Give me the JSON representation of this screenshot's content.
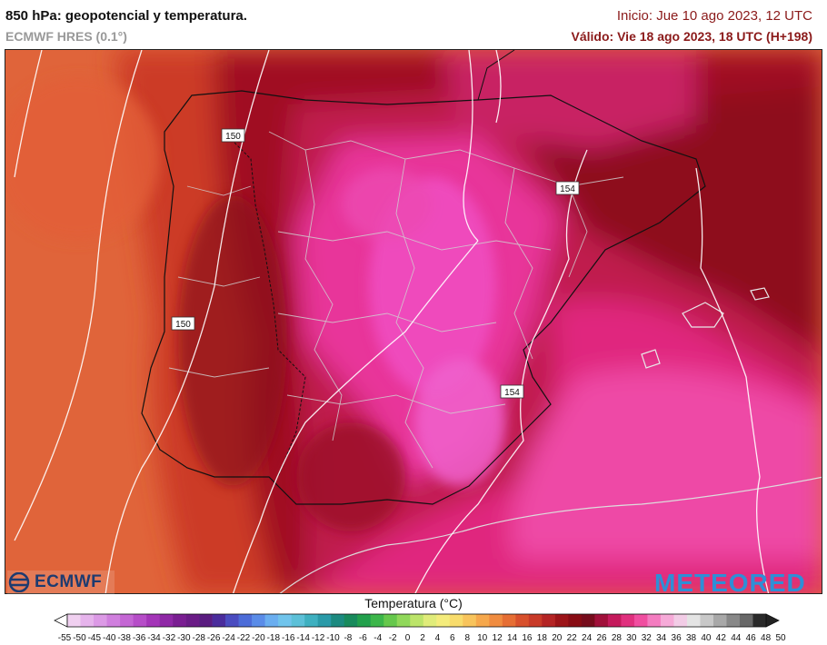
{
  "header": {
    "title": "850 hPa: geopotencial y temperatura.",
    "model": "ECMWF HRES (0.1°)",
    "init": "Inicio: Jue 10 ago 2023, 12 UTC",
    "valid": "Válido: Vie 18 ago 2023, 18 UTC (H+198)"
  },
  "map": {
    "contour_labels": [
      "150",
      "154",
      "150",
      "154"
    ]
  },
  "logos": {
    "left": "ECMWF",
    "right": "METEORED"
  },
  "legend": {
    "title": "Temperatura (°C)",
    "ticks": [
      "-55",
      "-50",
      "-45",
      "-40",
      "-38",
      "-36",
      "-34",
      "-32",
      "-30",
      "-28",
      "-26",
      "-24",
      "-22",
      "-20",
      "-18",
      "-16",
      "-14",
      "-12",
      "-10",
      "-8",
      "-6",
      "-4",
      "-2",
      "0",
      "2",
      "4",
      "6",
      "8",
      "10",
      "12",
      "14",
      "16",
      "18",
      "20",
      "22",
      "24",
      "26",
      "28",
      "30",
      "32",
      "34",
      "36",
      "38",
      "40",
      "42",
      "44",
      "46",
      "48",
      "50"
    ],
    "colors": [
      "#f0d0f0",
      "#e6b4ec",
      "#dc9ae6",
      "#d07fde",
      "#c466d4",
      "#b64dc8",
      "#a435b8",
      "#8f28a6",
      "#7a1e92",
      "#6a1c86",
      "#5a1c80",
      "#4a2c9c",
      "#4a4cc0",
      "#4c6cd8",
      "#5a8ce8",
      "#6aaef0",
      "#70c4ec",
      "#5cc0d8",
      "#3eb0c0",
      "#2a9aa8",
      "#1c8a80",
      "#188a5c",
      "#22a04c",
      "#3cb64a",
      "#66c84c",
      "#90d85a",
      "#bce46a",
      "#e0ec7a",
      "#f4ec7c",
      "#f8dc6c",
      "#f8c45c",
      "#f6a84c",
      "#f08c40",
      "#e66e34",
      "#d8502c",
      "#c83a28",
      "#b42424",
      "#9c1418",
      "#880c14",
      "#760c1c",
      "#a0103a",
      "#c41a5c",
      "#e0307e",
      "#f04ea0",
      "#f47cc0",
      "#f6aad8",
      "#f2cce6",
      "#e4e4e4",
      "#c8c8c8",
      "#a8a8a8",
      "#888888",
      "#686868",
      "#2a2a2a"
    ]
  }
}
